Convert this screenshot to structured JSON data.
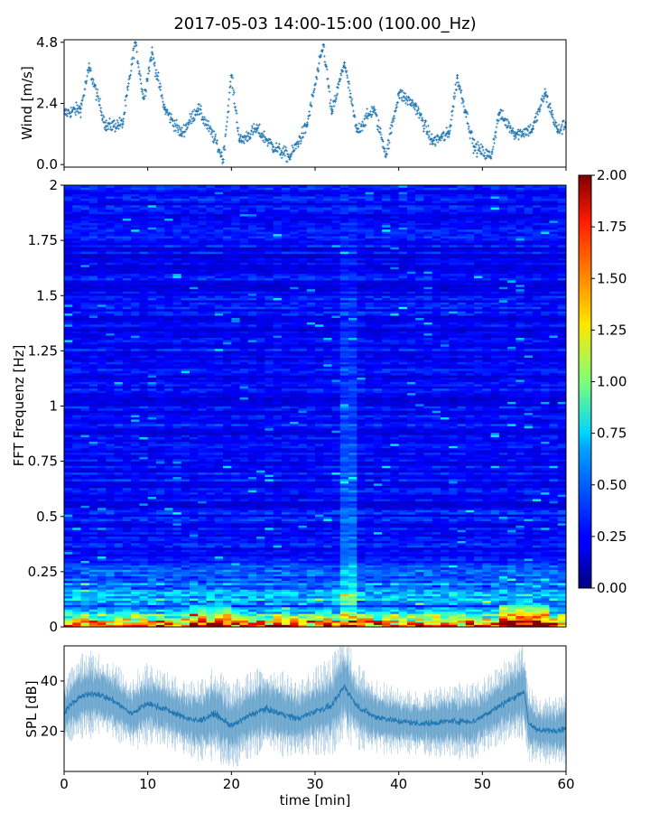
{
  "title": "2017-05-03 14:00-15:00 (100.00_Hz)",
  "chart_data": [
    {
      "type": "scatter",
      "panel": "wind",
      "ylabel": "Wind [m/s]",
      "xlabel": "",
      "xlim": [
        0,
        60
      ],
      "ylim": [
        -0.1,
        4.9
      ],
      "yticks": [
        "0.0",
        "2.4",
        "4.8"
      ],
      "ytick_values": [
        0.0,
        2.4,
        4.8
      ],
      "color": "#1f77b4",
      "marker": "+",
      "sample_points": [
        {
          "x": 0,
          "y": 2.0
        },
        {
          "x": 2,
          "y": 2.2
        },
        {
          "x": 3,
          "y": 3.8
        },
        {
          "x": 5,
          "y": 1.5
        },
        {
          "x": 7,
          "y": 1.6
        },
        {
          "x": 8.5,
          "y": 4.8
        },
        {
          "x": 9.5,
          "y": 2.6
        },
        {
          "x": 10.5,
          "y": 4.4
        },
        {
          "x": 12,
          "y": 2.2
        },
        {
          "x": 14,
          "y": 1.2
        },
        {
          "x": 16,
          "y": 2.2
        },
        {
          "x": 18,
          "y": 1.0
        },
        {
          "x": 19,
          "y": 0.2
        },
        {
          "x": 20,
          "y": 3.5
        },
        {
          "x": 21,
          "y": 0.9
        },
        {
          "x": 23,
          "y": 1.4
        },
        {
          "x": 25,
          "y": 0.7
        },
        {
          "x": 27,
          "y": 0.3
        },
        {
          "x": 29,
          "y": 1.5
        },
        {
          "x": 31,
          "y": 4.7
        },
        {
          "x": 32,
          "y": 2.0
        },
        {
          "x": 33.5,
          "y": 4.0
        },
        {
          "x": 35,
          "y": 1.3
        },
        {
          "x": 37,
          "y": 2.2
        },
        {
          "x": 38.5,
          "y": 0.4
        },
        {
          "x": 40,
          "y": 2.8
        },
        {
          "x": 42,
          "y": 2.3
        },
        {
          "x": 44,
          "y": 0.9
        },
        {
          "x": 46,
          "y": 1.2
        },
        {
          "x": 47,
          "y": 3.4
        },
        {
          "x": 48,
          "y": 2.1
        },
        {
          "x": 49,
          "y": 0.7
        },
        {
          "x": 51,
          "y": 0.3
        },
        {
          "x": 52,
          "y": 2.0
        },
        {
          "x": 54,
          "y": 1.2
        },
        {
          "x": 56,
          "y": 1.4
        },
        {
          "x": 57.5,
          "y": 2.8
        },
        {
          "x": 59,
          "y": 1.3
        },
        {
          "x": 60,
          "y": 1.6
        }
      ]
    },
    {
      "type": "heatmap",
      "panel": "spectrogram",
      "ylabel": "FFT Frequenz [Hz]",
      "xlabel": "",
      "xlim": [
        0,
        60
      ],
      "ylim": [
        0,
        2
      ],
      "yticks": [
        "0",
        "0.25",
        "0.5",
        "0.75",
        "1",
        "1.25",
        "1.5",
        "1.75",
        "2"
      ],
      "ytick_values": [
        0,
        0.25,
        0.5,
        0.75,
        1,
        1.25,
        1.5,
        1.75,
        2
      ],
      "colormap": "jet",
      "colorbar": {
        "vmin": 0.0,
        "vmax": 2.0,
        "ticks": [
          "0.00",
          "0.25",
          "0.50",
          "0.75",
          "1.00",
          "1.25",
          "1.50",
          "1.75",
          "2.00"
        ],
        "tick_values": [
          0,
          0.25,
          0.5,
          0.75,
          1.0,
          1.25,
          1.5,
          1.75,
          2.0
        ]
      },
      "description_values": {
        "background_level": 0.25,
        "low_frequency_band_hz": [
          0,
          0.1
        ],
        "low_frequency_level": 1.6,
        "bright_vertical_band_min": [
          33,
          35
        ]
      }
    },
    {
      "type": "line",
      "panel": "spl",
      "ylabel": "SPL [dB]",
      "xlabel": "time [min]",
      "xlim": [
        0,
        60
      ],
      "ylim": [
        4,
        54
      ],
      "yticks": [
        "20",
        "40"
      ],
      "ytick_values": [
        20,
        40
      ],
      "xticks": [
        "0",
        "10",
        "20",
        "30",
        "40",
        "50",
        "60"
      ],
      "xtick_values": [
        0,
        10,
        20,
        30,
        40,
        50,
        60
      ],
      "color": "#1f77b4",
      "series": [
        {
          "x": [
            0,
            2,
            4,
            6,
            8,
            10,
            12,
            14,
            16,
            18,
            20,
            22,
            24,
            26,
            28,
            30,
            32,
            33.5,
            35,
            37,
            40,
            43,
            46,
            49,
            51,
            53,
            55,
            55.5,
            57,
            60
          ],
          "y": [
            28,
            34,
            35,
            32,
            27,
            31,
            29,
            26,
            24,
            27,
            22,
            26,
            29,
            27,
            25,
            28,
            30,
            38,
            30,
            26,
            24,
            23,
            24,
            24,
            28,
            32,
            36,
            23,
            20,
            21
          ],
          "band": [
            6,
            8,
            8,
            7,
            7,
            8,
            7,
            7,
            8,
            9,
            8,
            8,
            8,
            8,
            7,
            8,
            9,
            10,
            8,
            7,
            6,
            6,
            7,
            7,
            7,
            8,
            9,
            7,
            6,
            7
          ]
        }
      ]
    }
  ]
}
